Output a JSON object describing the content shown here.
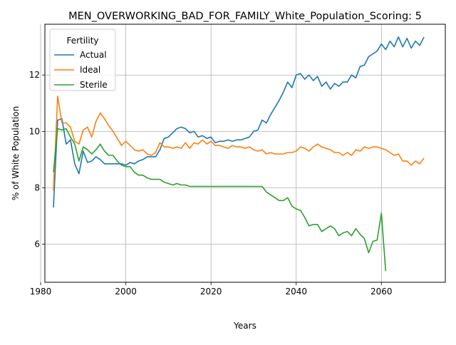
{
  "chart_data": {
    "type": "line",
    "title": "MEN_OVERWORKING_BAD_FOR_FAMILY_White_Population_Scoring: 5",
    "xlabel": "Years",
    "ylabel": "% of White Population",
    "xlim": [
      1981,
      2075
    ],
    "ylim": [
      4.65,
      13.8
    ],
    "xticks": [
      1980,
      2000,
      2020,
      2040,
      2060
    ],
    "yticks": [
      6,
      8,
      10,
      12
    ],
    "grid": true,
    "legend": {
      "title": "Fertility",
      "placement": "top-left"
    },
    "series": [
      {
        "name": "Actual",
        "color": "#1f77b4",
        "x": [
          1983,
          1984,
          1985,
          1986,
          1987,
          1988,
          1989,
          1990,
          1991,
          1992,
          1993,
          1994,
          1995,
          1996,
          1997,
          1998,
          1999,
          2000,
          2001,
          2002,
          2003,
          2004,
          2005,
          2006,
          2007,
          2008,
          2009,
          2010,
          2011,
          2012,
          2013,
          2014,
          2015,
          2016,
          2017,
          2018,
          2019,
          2020,
          2021,
          2022,
          2023,
          2024,
          2025,
          2026,
          2027,
          2028,
          2029,
          2030,
          2031,
          2032,
          2033,
          2034,
          2035,
          2036,
          2037,
          2038,
          2039,
          2040,
          2041,
          2042,
          2043,
          2044,
          2045,
          2046,
          2047,
          2048,
          2049,
          2050,
          2051,
          2052,
          2053,
          2054,
          2055,
          2056,
          2057,
          2058,
          2059,
          2060,
          2061,
          2062,
          2063,
          2064,
          2065,
          2066,
          2067,
          2068,
          2069,
          2070
        ],
        "y": [
          7.3,
          10.4,
          10.45,
          9.55,
          9.7,
          8.85,
          8.5,
          9.3,
          8.9,
          8.95,
          9.1,
          9.0,
          8.85,
          8.85,
          8.85,
          8.85,
          8.85,
          8.8,
          8.9,
          8.85,
          8.95,
          9.0,
          9.1,
          9.1,
          9.1,
          9.35,
          9.75,
          9.8,
          9.95,
          10.1,
          10.15,
          10.1,
          9.95,
          10.0,
          9.8,
          9.85,
          9.75,
          9.8,
          9.6,
          9.65,
          9.65,
          9.7,
          9.65,
          9.7,
          9.7,
          9.75,
          9.8,
          10.0,
          10.05,
          10.4,
          10.3,
          10.6,
          10.85,
          11.1,
          11.4,
          11.75,
          11.55,
          12.0,
          12.05,
          11.85,
          12.0,
          11.8,
          11.95,
          11.6,
          11.75,
          11.5,
          11.7,
          11.6,
          11.75,
          11.75,
          12.0,
          11.9,
          12.3,
          12.35,
          12.65,
          12.75,
          12.85,
          13.1,
          12.9,
          13.2,
          13.0,
          13.35,
          13.0,
          13.3,
          12.95,
          13.2,
          13.05,
          13.35
        ]
      },
      {
        "name": "Ideal",
        "color": "#ff7f0e",
        "x": [
          1983,
          1984,
          1985,
          1986,
          1987,
          1988,
          1989,
          1990,
          1991,
          1992,
          1993,
          1994,
          1995,
          1996,
          1997,
          1998,
          1999,
          2000,
          2001,
          2002,
          2003,
          2004,
          2005,
          2006,
          2007,
          2008,
          2009,
          2010,
          2011,
          2012,
          2013,
          2014,
          2015,
          2016,
          2017,
          2018,
          2019,
          2020,
          2021,
          2022,
          2023,
          2024,
          2025,
          2026,
          2027,
          2028,
          2029,
          2030,
          2031,
          2032,
          2033,
          2034,
          2035,
          2036,
          2037,
          2038,
          2039,
          2040,
          2041,
          2042,
          2043,
          2044,
          2045,
          2046,
          2047,
          2048,
          2049,
          2050,
          2051,
          2052,
          2053,
          2054,
          2055,
          2056,
          2057,
          2058,
          2059,
          2060,
          2061,
          2062,
          2063,
          2064,
          2065,
          2066,
          2067,
          2068,
          2069,
          2070
        ],
        "y": [
          7.9,
          11.25,
          10.3,
          10.3,
          10.15,
          9.65,
          9.55,
          10.05,
          10.15,
          9.8,
          10.35,
          10.65,
          10.45,
          10.2,
          10.0,
          9.75,
          9.5,
          9.65,
          9.5,
          9.35,
          9.3,
          9.35,
          9.2,
          9.15,
          9.25,
          9.6,
          9.45,
          9.45,
          9.4,
          9.45,
          9.4,
          9.6,
          9.4,
          9.6,
          9.55,
          9.7,
          9.55,
          9.65,
          9.5,
          9.5,
          9.45,
          9.4,
          9.5,
          9.45,
          9.45,
          9.4,
          9.45,
          9.35,
          9.3,
          9.35,
          9.2,
          9.25,
          9.2,
          9.2,
          9.2,
          9.25,
          9.25,
          9.3,
          9.45,
          9.4,
          9.3,
          9.45,
          9.55,
          9.45,
          9.4,
          9.35,
          9.25,
          9.25,
          9.15,
          9.25,
          9.15,
          9.35,
          9.3,
          9.45,
          9.4,
          9.45,
          9.45,
          9.4,
          9.35,
          9.25,
          9.15,
          9.2,
          8.95,
          8.95,
          8.8,
          8.95,
          8.85,
          9.05
        ]
      },
      {
        "name": "Sterile",
        "color": "#2ca02c",
        "x": [
          1983,
          1984,
          1985,
          1986,
          1987,
          1988,
          1989,
          1990,
          1991,
          1992,
          1993,
          1994,
          1995,
          1996,
          1997,
          1998,
          1999,
          2000,
          2001,
          2002,
          2003,
          2004,
          2005,
          2006,
          2007,
          2008,
          2009,
          2010,
          2011,
          2012,
          2013,
          2014,
          2015,
          2016,
          2017,
          2018,
          2019,
          2020,
          2021,
          2022,
          2023,
          2024,
          2025,
          2026,
          2027,
          2028,
          2029,
          2030,
          2031,
          2032,
          2033,
          2034,
          2035,
          2036,
          2037,
          2038,
          2039,
          2040,
          2041,
          2042,
          2043,
          2044,
          2045,
          2046,
          2047,
          2048,
          2049,
          2050,
          2051,
          2052,
          2053,
          2054,
          2055,
          2056,
          2057,
          2058,
          2059,
          2060,
          2061
        ],
        "y": [
          8.55,
          10.1,
          10.05,
          10.1,
          9.8,
          9.55,
          8.95,
          9.45,
          9.35,
          9.2,
          9.35,
          9.55,
          9.3,
          9.15,
          9.15,
          8.95,
          8.8,
          8.75,
          8.75,
          8.55,
          8.45,
          8.45,
          8.35,
          8.3,
          8.3,
          8.3,
          8.2,
          8.15,
          8.1,
          8.15,
          8.1,
          8.1,
          8.05,
          8.05,
          8.05,
          8.05,
          8.05,
          8.05,
          8.05,
          8.05,
          8.05,
          8.05,
          8.05,
          8.05,
          8.05,
          8.05,
          8.05,
          8.05,
          8.05,
          8.05,
          7.85,
          7.75,
          7.65,
          7.55,
          7.55,
          7.65,
          7.35,
          7.25,
          7.2,
          6.95,
          6.65,
          6.7,
          6.7,
          6.45,
          6.55,
          6.65,
          6.55,
          6.3,
          6.4,
          6.45,
          6.3,
          6.55,
          6.35,
          6.2,
          5.7,
          6.1,
          6.15,
          7.1,
          5.05
        ]
      }
    ]
  }
}
